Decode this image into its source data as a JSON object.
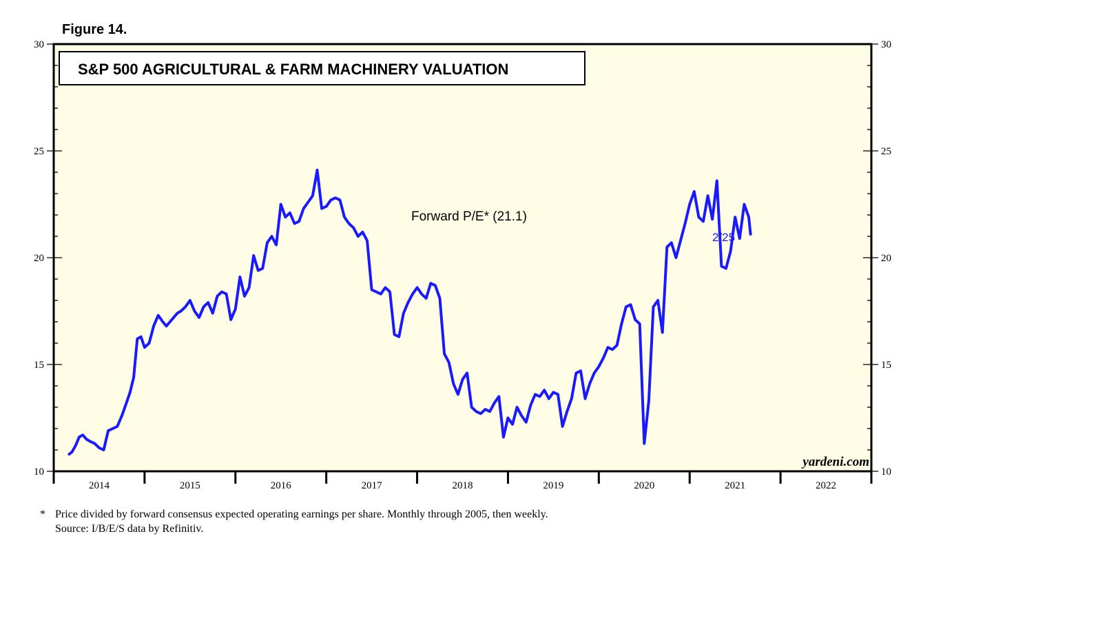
{
  "figure_label": "Figure 14.",
  "chart_data": {
    "type": "line",
    "title": "S&P 500 AGRICULTURAL & FARM MACHINERY VALUATION",
    "ylim": [
      10,
      30
    ],
    "y_ticks": [
      "10",
      "15",
      "20",
      "25",
      "30"
    ],
    "year_labels": [
      "2014",
      "2015",
      "2016",
      "2017",
      "2018",
      "2019",
      "2020",
      "2021",
      "2022"
    ],
    "xlim": [
      2013.5,
      2022.5
    ],
    "plot_background": "#fffde6",
    "line_color": "#1a1aff",
    "series": [
      {
        "name": "Forward P/E* (21.1)",
        "end_label": "2/25",
        "x": [
          2013.67,
          2013.7,
          2013.74,
          2013.78,
          2013.82,
          2013.86,
          2013.9,
          2013.95,
          2014.0,
          2014.05,
          2014.1,
          2014.15,
          2014.2,
          2014.25,
          2014.3,
          2014.34,
          2014.38,
          2014.42,
          2014.46,
          2014.5,
          2014.55,
          2014.6,
          2014.65,
          2014.7,
          2014.74,
          2014.78,
          2014.82,
          2014.86,
          2014.9,
          2014.95,
          2015.0,
          2015.05,
          2015.1,
          2015.15,
          2015.2,
          2015.25,
          2015.3,
          2015.35,
          2015.4,
          2015.45,
          2015.5,
          2015.55,
          2015.6,
          2015.65,
          2015.7,
          2015.75,
          2015.8,
          2015.85,
          2015.9,
          2015.95,
          2016.0,
          2016.05,
          2016.1,
          2016.15,
          2016.2,
          2016.25,
          2016.3,
          2016.35,
          2016.4,
          2016.45,
          2016.5,
          2016.55,
          2016.6,
          2016.65,
          2016.7,
          2016.75,
          2016.8,
          2016.85,
          2016.9,
          2016.95,
          2017.0,
          2017.05,
          2017.1,
          2017.15,
          2017.2,
          2017.25,
          2017.3,
          2017.35,
          2017.4,
          2017.45,
          2017.5,
          2017.55,
          2017.6,
          2017.65,
          2017.7,
          2017.75,
          2017.8,
          2017.85,
          2017.9,
          2017.95,
          2018.0,
          2018.05,
          2018.1,
          2018.15,
          2018.2,
          2018.25,
          2018.3,
          2018.35,
          2018.4,
          2018.45,
          2018.5,
          2018.55,
          2018.6,
          2018.65,
          2018.7,
          2018.75,
          2018.8,
          2018.85,
          2018.9,
          2018.95,
          2019.0,
          2019.05,
          2019.1,
          2019.15,
          2019.2,
          2019.25,
          2019.3,
          2019.35,
          2019.4,
          2019.45,
          2019.5,
          2019.55,
          2019.6,
          2019.65,
          2019.7,
          2019.75,
          2019.8,
          2019.85,
          2019.9,
          2019.95,
          2020.0,
          2020.05,
          2020.1,
          2020.15,
          2020.2,
          2020.25,
          2020.3,
          2020.35,
          2020.4,
          2020.45,
          2020.5,
          2020.55,
          2020.6,
          2020.65,
          2020.7,
          2020.75,
          2020.8,
          2020.85,
          2020.9,
          2020.95,
          2021.0,
          2021.05,
          2021.1,
          2021.15,
          2021.17
        ],
        "y": [
          10.8,
          10.9,
          11.2,
          11.6,
          11.7,
          11.5,
          11.4,
          11.3,
          11.1,
          11.0,
          11.9,
          12.0,
          12.1,
          12.6,
          13.2,
          13.7,
          14.4,
          16.2,
          16.3,
          15.8,
          16.0,
          16.8,
          17.3,
          17.0,
          16.8,
          17.0,
          17.2,
          17.4,
          17.5,
          17.7,
          18.0,
          17.5,
          17.2,
          17.7,
          17.9,
          17.4,
          18.2,
          18.4,
          18.3,
          17.1,
          17.6,
          19.1,
          18.2,
          18.6,
          20.1,
          19.4,
          19.5,
          20.7,
          21.0,
          20.6,
          22.5,
          21.9,
          22.1,
          21.6,
          21.7,
          22.3,
          22.6,
          22.9,
          24.1,
          22.3,
          22.4,
          22.7,
          22.8,
          22.7,
          21.9,
          21.6,
          21.4,
          21.0,
          21.2,
          20.8,
          18.5,
          18.4,
          18.3,
          18.6,
          18.4,
          16.4,
          16.3,
          17.4,
          17.9,
          18.3,
          18.6,
          18.3,
          18.1,
          18.8,
          18.7,
          18.1,
          15.5,
          15.1,
          14.1,
          13.6,
          14.3,
          14.6,
          13.0,
          12.8,
          12.7,
          12.9,
          12.8,
          13.2,
          13.5,
          11.6,
          12.5,
          12.2,
          13.0,
          12.6,
          12.3,
          13.1,
          13.6,
          13.5,
          13.8,
          13.4,
          13.7,
          13.6,
          12.1,
          12.8,
          13.4,
          14.6,
          14.7,
          13.4,
          14.1,
          14.6,
          14.9,
          15.3,
          15.8,
          15.7,
          15.9,
          16.9,
          17.7,
          17.8,
          17.1,
          16.9,
          11.3,
          13.3,
          17.7,
          18.0,
          16.5,
          20.5,
          20.7,
          20.0,
          20.8,
          21.6,
          22.5,
          23.1,
          21.9,
          21.7,
          22.9,
          21.8,
          23.6,
          19.6,
          19.5,
          20.3,
          21.9,
          20.9,
          22.5,
          21.9,
          21.1
        ]
      }
    ]
  },
  "brand": "yardeni.com",
  "footnote": {
    "marker": "*",
    "line1": "Price divided by forward consensus expected operating earnings per share. Monthly through 2005, then weekly.",
    "line2": "Source: I/B/E/S data by Refinitiv."
  }
}
